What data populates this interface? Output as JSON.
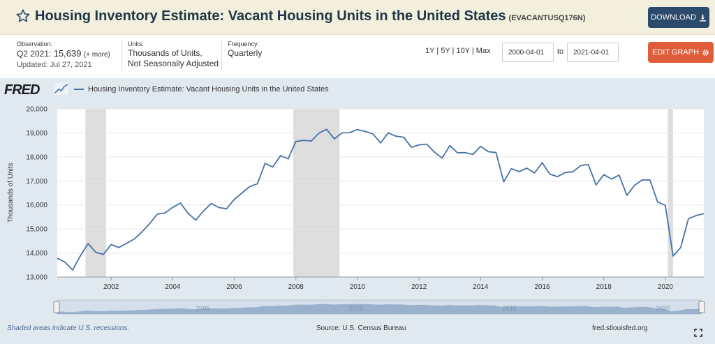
{
  "header": {
    "title": "Housing Inventory Estimate: Vacant Housing Units in the United States",
    "series_id": "(EVACANTUSQ176N)",
    "download_label": "DOWNLOAD"
  },
  "meta": {
    "observation_label": "Observation:",
    "observation_period": "Q2 2021:",
    "observation_value": "15,639",
    "observation_more": "(+ more)",
    "updated": "Updated: Jul 27, 2021",
    "units_label": "Units:",
    "units_line1": "Thousands of Units,",
    "units_line2": "Not Seasonally Adjusted",
    "frequency_label": "Frequency:",
    "frequency_value": "Quarterly"
  },
  "controls": {
    "range_links": "1Y | 5Y | 10Y | Max",
    "start_date": "2000-04-01",
    "to_label": "to",
    "end_date": "2021-04-01",
    "edit_label": "EDIT GRAPH"
  },
  "brand": {
    "logo_text": "FRED"
  },
  "footer": {
    "recession_note": "Shaded areas indicate U.S. recessions.",
    "source": "Source: U.S. Census Bureau",
    "url": "fred.stlouisfed.org"
  },
  "colors": {
    "series": "#4572a7",
    "recession": "#dddddd",
    "download_button": "#2c4a6b",
    "edit_button": "#e05d3a"
  },
  "icons": [
    "star-icon",
    "download-icon",
    "gear-icon",
    "fullscreen-icon"
  ],
  "chart_data": {
    "type": "line",
    "ylabel": "Thousands of Units",
    "legend": "Housing Inventory Estimate: Vacant Housing Units in the United States",
    "ylim": [
      13000,
      20000
    ],
    "yticks": [
      "13,000",
      "14,000",
      "15,000",
      "16,000",
      "17,000",
      "18,000",
      "19,000",
      "20,000"
    ],
    "xticks": [
      "2002",
      "2004",
      "2006",
      "2008",
      "2010",
      "2012",
      "2014",
      "2016",
      "2018",
      "2020"
    ],
    "x_range": [
      "2000-04-01",
      "2021-04-01"
    ],
    "recessions": [
      [
        "2001-03-01",
        "2001-11-01"
      ],
      [
        "2007-12-01",
        "2009-06-01"
      ],
      [
        "2020-02-01",
        "2020-04-01"
      ]
    ],
    "navigator_labels": [
      "2005",
      "2010",
      "2015",
      "2020"
    ],
    "series": [
      {
        "name": "Housing Inventory Estimate: Vacant Housing Units in the United States",
        "x": [
          "2000-Q2",
          "2000-Q3",
          "2000-Q4",
          "2001-Q1",
          "2001-Q2",
          "2001-Q3",
          "2001-Q4",
          "2002-Q1",
          "2002-Q2",
          "2002-Q3",
          "2002-Q4",
          "2003-Q1",
          "2003-Q2",
          "2003-Q3",
          "2003-Q4",
          "2004-Q1",
          "2004-Q2",
          "2004-Q3",
          "2004-Q4",
          "2005-Q1",
          "2005-Q2",
          "2005-Q3",
          "2005-Q4",
          "2006-Q1",
          "2006-Q2",
          "2006-Q3",
          "2006-Q4",
          "2007-Q1",
          "2007-Q2",
          "2007-Q3",
          "2007-Q4",
          "2008-Q1",
          "2008-Q2",
          "2008-Q3",
          "2008-Q4",
          "2009-Q1",
          "2009-Q2",
          "2009-Q3",
          "2009-Q4",
          "2010-Q1",
          "2010-Q2",
          "2010-Q3",
          "2010-Q4",
          "2011-Q1",
          "2011-Q2",
          "2011-Q3",
          "2011-Q4",
          "2012-Q1",
          "2012-Q2",
          "2012-Q3",
          "2012-Q4",
          "2013-Q1",
          "2013-Q2",
          "2013-Q3",
          "2013-Q4",
          "2014-Q1",
          "2014-Q2",
          "2014-Q3",
          "2014-Q4",
          "2015-Q1",
          "2015-Q2",
          "2015-Q3",
          "2015-Q4",
          "2016-Q1",
          "2016-Q2",
          "2016-Q3",
          "2016-Q4",
          "2017-Q1",
          "2017-Q2",
          "2017-Q3",
          "2017-Q4",
          "2018-Q1",
          "2018-Q2",
          "2018-Q3",
          "2018-Q4",
          "2019-Q1",
          "2019-Q2",
          "2019-Q3",
          "2019-Q4",
          "2020-Q1",
          "2020-Q2",
          "2020-Q3",
          "2020-Q4",
          "2021-Q1",
          "2021-Q2"
        ],
        "values": [
          13780,
          13620,
          13290,
          13880,
          14390,
          14030,
          13940,
          14350,
          14230,
          14400,
          14580,
          14880,
          15220,
          15620,
          15670,
          15900,
          16080,
          15650,
          15370,
          15750,
          16060,
          15890,
          15840,
          16230,
          16500,
          16760,
          16880,
          17730,
          17580,
          18050,
          17920,
          18640,
          18690,
          18660,
          18990,
          19150,
          18750,
          19000,
          19010,
          19140,
          19060,
          18960,
          18580,
          19000,
          18860,
          18820,
          18400,
          18500,
          18530,
          18200,
          17950,
          18470,
          18170,
          18180,
          18100,
          18440,
          18220,
          18180,
          16960,
          17510,
          17390,
          17530,
          17330,
          17760,
          17280,
          17180,
          17350,
          17380,
          17640,
          17680,
          16830,
          17260,
          17080,
          17240,
          16400,
          16820,
          17040,
          17040,
          16120,
          15980,
          13870,
          14230,
          15430,
          15560,
          15639
        ]
      }
    ]
  }
}
